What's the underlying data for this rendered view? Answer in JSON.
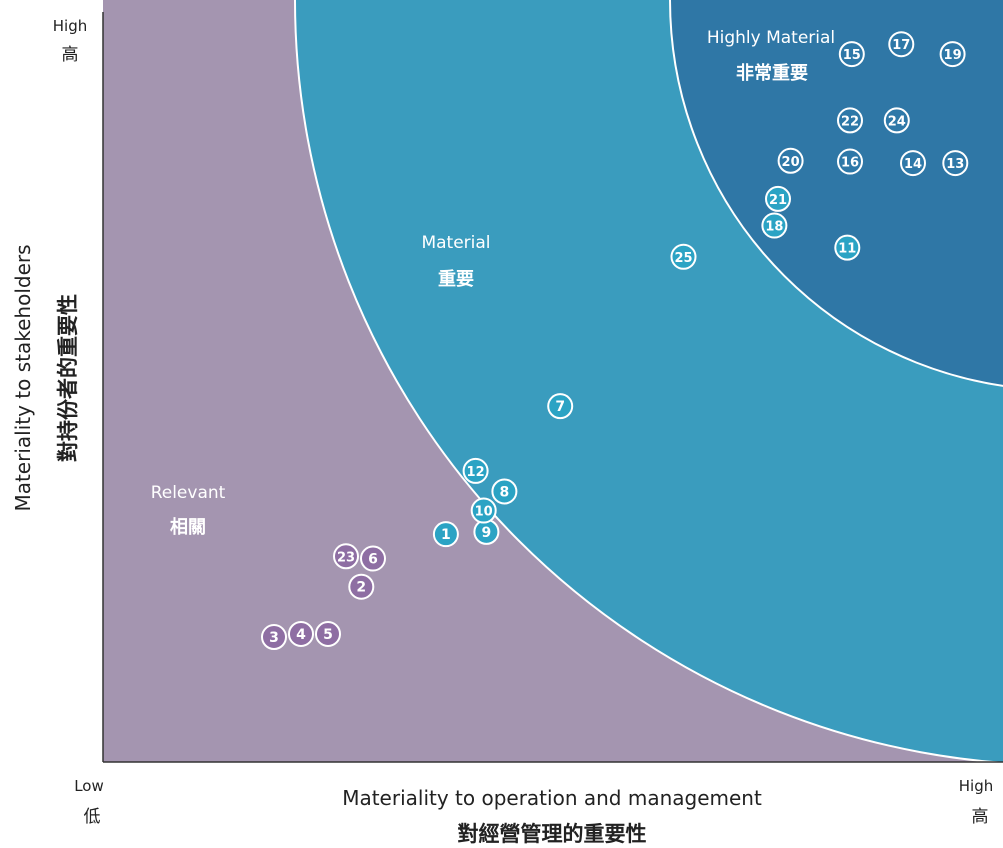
{
  "colors": {
    "relevant": "#A495B0",
    "material": "#3A9CBE",
    "highly_material": "#2F77A6",
    "relevant_point": "#8E6EA3",
    "material_point": "#2BA3C4",
    "highly_point": "#2E78A8",
    "outline": "#ffffff"
  },
  "axes": {
    "y_high_en": "High",
    "y_high_zh": "高",
    "x_low_en": "Low",
    "x_low_zh": "低",
    "x_high_en": "High",
    "x_high_zh": "高",
    "x_title_en": "Materiality to operation and management",
    "x_title_zh": "對經營管理的重要性",
    "y_title_en": "Materiality to stakeholders",
    "y_title_zh": "對持份者的重要性"
  },
  "zones": {
    "highly_en": "Highly Material",
    "highly_zh": "非常重要",
    "material_en": "Material",
    "material_zh": "重要",
    "relevant_en": "Relevant",
    "relevant_zh": "相關"
  },
  "chart_data": {
    "type": "scatter",
    "xlabel": "Materiality to operation and management 對經營管理的重要性",
    "ylabel": "Materiality to stakeholders 對持份者的重要性",
    "xlim": [
      0,
      100
    ],
    "ylim": [
      0,
      100
    ],
    "x_ticks": [
      "Low 低",
      "High 高"
    ],
    "y_ticks": [
      "High 高"
    ],
    "zones": [
      "Relevant 相關",
      "Material 重要",
      "Highly Material 非常重要"
    ],
    "points": [
      {
        "label": "1",
        "x": 38.1,
        "y": 29.9,
        "zone": "material"
      },
      {
        "label": "2",
        "x": 28.7,
        "y": 23.0,
        "zone": "relevant"
      },
      {
        "label": "3",
        "x": 19.0,
        "y": 16.4,
        "zone": "relevant"
      },
      {
        "label": "4",
        "x": 22.0,
        "y": 16.8,
        "zone": "relevant"
      },
      {
        "label": "5",
        "x": 25.0,
        "y": 16.8,
        "zone": "relevant"
      },
      {
        "label": "6",
        "x": 30.0,
        "y": 26.7,
        "zone": "relevant"
      },
      {
        "label": "7",
        "x": 50.8,
        "y": 46.7,
        "zone": "material"
      },
      {
        "label": "8",
        "x": 44.6,
        "y": 35.5,
        "zone": "material"
      },
      {
        "label": "9",
        "x": 42.6,
        "y": 30.2,
        "zone": "material"
      },
      {
        "label": "10",
        "x": 42.3,
        "y": 33.0,
        "zone": "material"
      },
      {
        "label": "11",
        "x": 82.7,
        "y": 67.5,
        "zone": "material"
      },
      {
        "label": "12",
        "x": 41.4,
        "y": 38.2,
        "zone": "material"
      },
      {
        "label": "13",
        "x": 94.7,
        "y": 78.6,
        "zone": "highly_material"
      },
      {
        "label": "14",
        "x": 90.0,
        "y": 78.6,
        "zone": "highly_material"
      },
      {
        "label": "15",
        "x": 83.2,
        "y": 92.9,
        "zone": "highly_material"
      },
      {
        "label": "16",
        "x": 83.0,
        "y": 78.8,
        "zone": "highly_material"
      },
      {
        "label": "17",
        "x": 88.7,
        "y": 94.2,
        "zone": "highly_material"
      },
      {
        "label": "18",
        "x": 74.6,
        "y": 70.4,
        "zone": "material"
      },
      {
        "label": "19",
        "x": 94.4,
        "y": 92.9,
        "zone": "highly_material"
      },
      {
        "label": "20",
        "x": 76.4,
        "y": 78.9,
        "zone": "highly_material"
      },
      {
        "label": "21",
        "x": 75.0,
        "y": 73.9,
        "zone": "material"
      },
      {
        "label": "22",
        "x": 83.0,
        "y": 84.2,
        "zone": "highly_material"
      },
      {
        "label": "23",
        "x": 27.0,
        "y": 27.0,
        "zone": "relevant"
      },
      {
        "label": "24",
        "x": 88.2,
        "y": 84.2,
        "zone": "highly_material"
      },
      {
        "label": "25",
        "x": 64.5,
        "y": 66.3,
        "zone": "material"
      }
    ]
  }
}
